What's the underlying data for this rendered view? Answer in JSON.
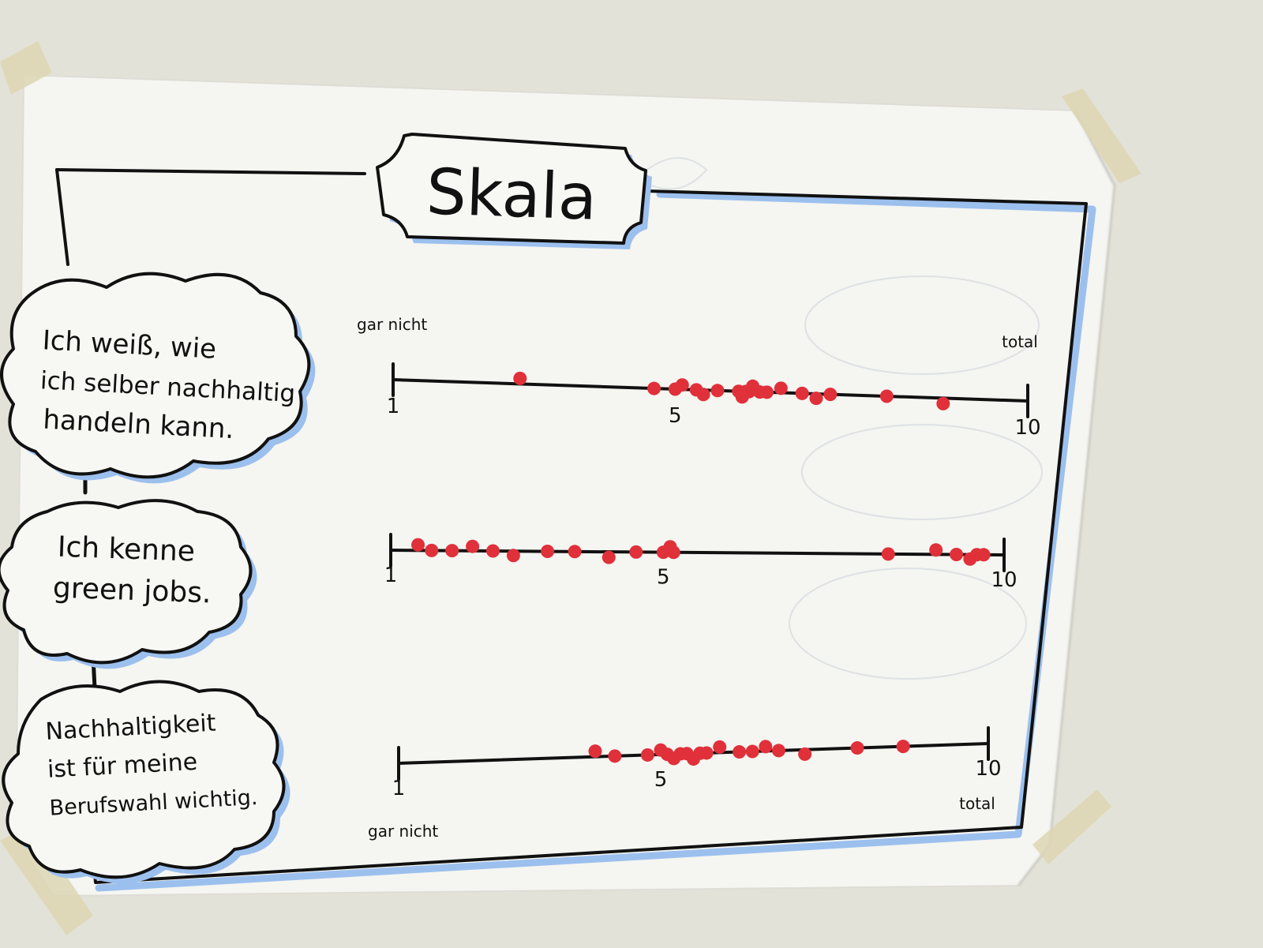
{
  "poster": {
    "title": "Skala",
    "colors": {
      "paper": "#f4f4f0",
      "ink": "#111111",
      "highlight": "#8db4ea",
      "dot": "#e0303a",
      "tape": "#ddd6b4"
    }
  },
  "scales": [
    {
      "statement_lines": [
        "Ich weiß, wie",
        "ich selber nachhaltig",
        "handeln kann."
      ],
      "low_label": "gar nicht",
      "high_label": "total",
      "tick_labels": [
        "1",
        "5",
        "10"
      ],
      "ratings": [
        2.8,
        4.7,
        5.0,
        5.1,
        5.3,
        5.4,
        5.6,
        5.9,
        5.95,
        6.0,
        6.05,
        6.1,
        6.2,
        6.3,
        6.5,
        6.8,
        7.0,
        7.2,
        8.0,
        8.8
      ]
    },
    {
      "statement_lines": [
        "Ich kenne",
        "green jobs."
      ],
      "low_label": "",
      "high_label": "",
      "tick_labels": [
        "1",
        "5",
        "10"
      ],
      "ratings": [
        1.4,
        1.6,
        1.9,
        2.2,
        2.5,
        2.8,
        3.3,
        3.7,
        4.2,
        4.6,
        5.0,
        5.1,
        5.15,
        8.3,
        9.0,
        9.3,
        9.5,
        9.6,
        9.7
      ]
    },
    {
      "statement_lines": [
        "Nachhaltigkeit",
        "ist für meine",
        "Berufswahl wichtig."
      ],
      "low_label": "gar nicht",
      "high_label": "total",
      "tick_labels": [
        "1",
        "5",
        "10"
      ],
      "ratings": [
        4.0,
        4.3,
        4.8,
        5.0,
        5.1,
        5.2,
        5.3,
        5.4,
        5.5,
        5.6,
        5.7,
        5.9,
        6.2,
        6.4,
        6.6,
        6.8,
        7.2,
        8.0,
        8.7
      ]
    }
  ]
}
